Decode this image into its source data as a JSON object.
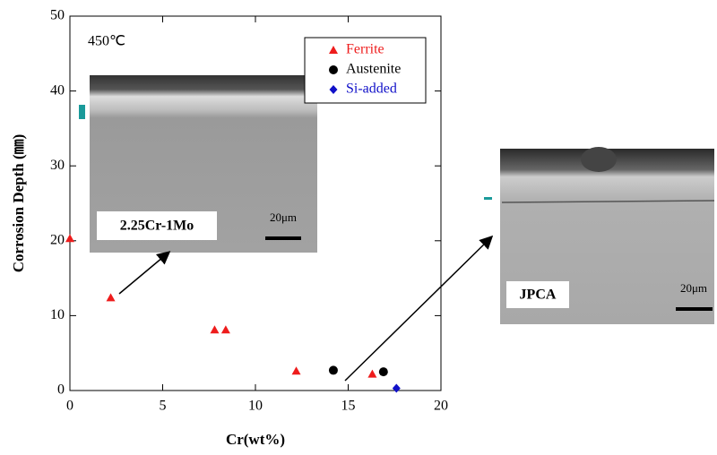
{
  "chart_data": {
    "type": "scatter",
    "xlabel": "Cr(wt%)",
    "ylabel": "Corrosion Depth (㎜)",
    "xlim": [
      0,
      20
    ],
    "ylim": [
      0,
      50
    ],
    "xticks": [
      0,
      5,
      10,
      15,
      20
    ],
    "yticks": [
      0,
      10,
      20,
      30,
      40,
      50
    ],
    "legend": "upper right",
    "series": [
      {
        "name": "Ferrite",
        "color": "#ee1c1c",
        "marker": "triangle",
        "x": [
          0,
          2.2,
          7.8,
          8.4,
          12.2,
          16.3
        ],
        "values": [
          20.3,
          12.4,
          8.1,
          8.1,
          2.6,
          2.2
        ]
      },
      {
        "name": "Austenite",
        "color": "#000000",
        "marker": "circle",
        "x": [
          14.2,
          16.9
        ],
        "values": [
          2.7,
          2.5
        ]
      },
      {
        "name": "Si-added",
        "color": "#1010c8",
        "marker": "diamond",
        "x": [
          17.6
        ],
        "values": [
          0.3
        ]
      }
    ],
    "annotations": [
      "450℃",
      "2.25Cr-1Mo",
      "20μm",
      "JPCA",
      "20μm"
    ]
  }
}
